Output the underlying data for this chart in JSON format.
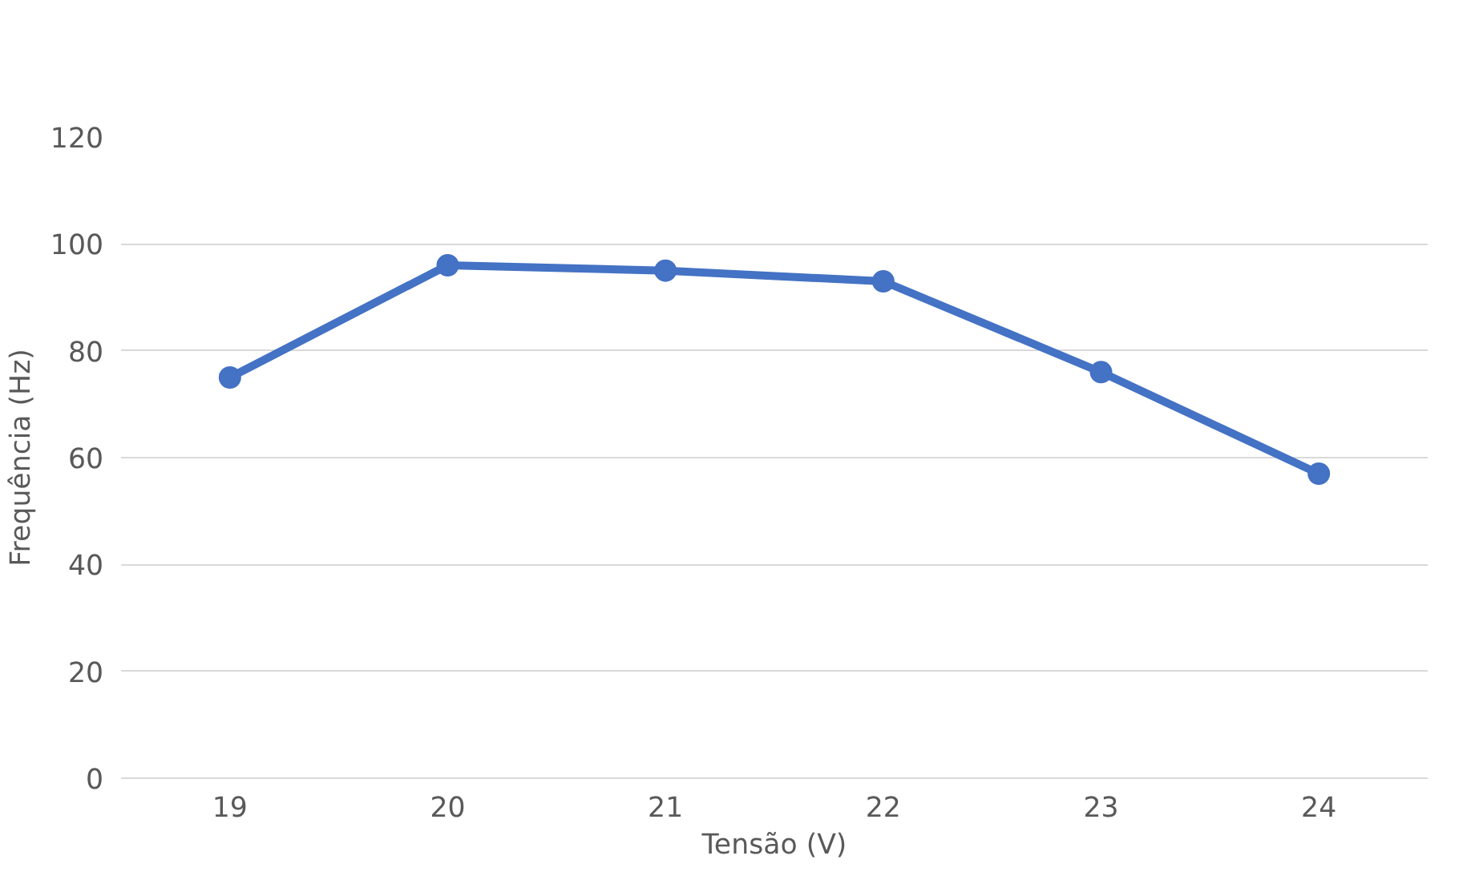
{
  "chart_data": {
    "type": "line",
    "xlabel": "Tensão (V)",
    "ylabel": "Frequência (Hz)",
    "categories": [
      "19",
      "20",
      "21",
      "22",
      "23",
      "24"
    ],
    "series": [
      {
        "color": "#4472c4",
        "values": [
          75,
          96,
          95,
          93,
          76,
          57
        ]
      }
    ],
    "ylim": [
      0,
      120
    ],
    "yticks": [
      0,
      20,
      40,
      60,
      80,
      100,
      120
    ],
    "grid": "y",
    "marker": "circle",
    "line_style": "solid"
  }
}
